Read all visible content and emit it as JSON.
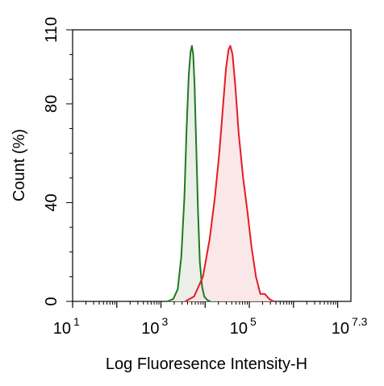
{
  "chart_data": {
    "type": "area",
    "xlabel": "Log Fluoresence Intensity-H",
    "ylabel": "Count  (%)",
    "x_scale": "log10",
    "xlim": [
      1,
      7.3
    ],
    "ylim": [
      0,
      110
    ],
    "x_ticks": [
      {
        "base": "10",
        "exp": "1",
        "value": 1
      },
      {
        "base": "10",
        "exp": "3",
        "value": 3
      },
      {
        "base": "10",
        "exp": "5",
        "value": 5
      },
      {
        "base": "10",
        "exp": "7.3",
        "value": 7.3
      }
    ],
    "y_ticks": [
      {
        "label": "0",
        "value": 0
      },
      {
        "label": "40",
        "value": 40
      },
      {
        "label": "80",
        "value": 80
      },
      {
        "label": "110",
        "value": 110
      }
    ],
    "grid": false,
    "legend": "none",
    "series": [
      {
        "color": "#1f7a1f",
        "fill": "#e8ece4",
        "x": [
          3.15,
          3.28,
          3.38,
          3.46,
          3.53,
          3.58,
          3.63,
          3.67,
          3.7,
          3.73,
          3.76,
          3.8,
          3.84,
          3.88,
          3.93,
          3.98,
          4.05,
          4.12
        ],
        "y": [
          0,
          1,
          5,
          18,
          42,
          70,
          92,
          101,
          103.5,
          100,
          88,
          62,
          36,
          16,
          6,
          2,
          0.5,
          0
        ]
      },
      {
        "color": "#e31c23",
        "fill": "#f9e3e3",
        "x": [
          3.55,
          3.75,
          3.95,
          4.1,
          4.22,
          4.32,
          4.4,
          4.47,
          4.53,
          4.57,
          4.62,
          4.68,
          4.76,
          4.86,
          4.96,
          5.05,
          5.15,
          5.25,
          5.35,
          5.45,
          5.55
        ],
        "y": [
          0,
          2,
          10,
          25,
          42,
          60,
          78,
          94,
          102,
          103.5,
          100,
          88,
          68,
          50,
          36,
          22,
          10,
          3,
          3,
          1,
          0
        ]
      }
    ]
  }
}
